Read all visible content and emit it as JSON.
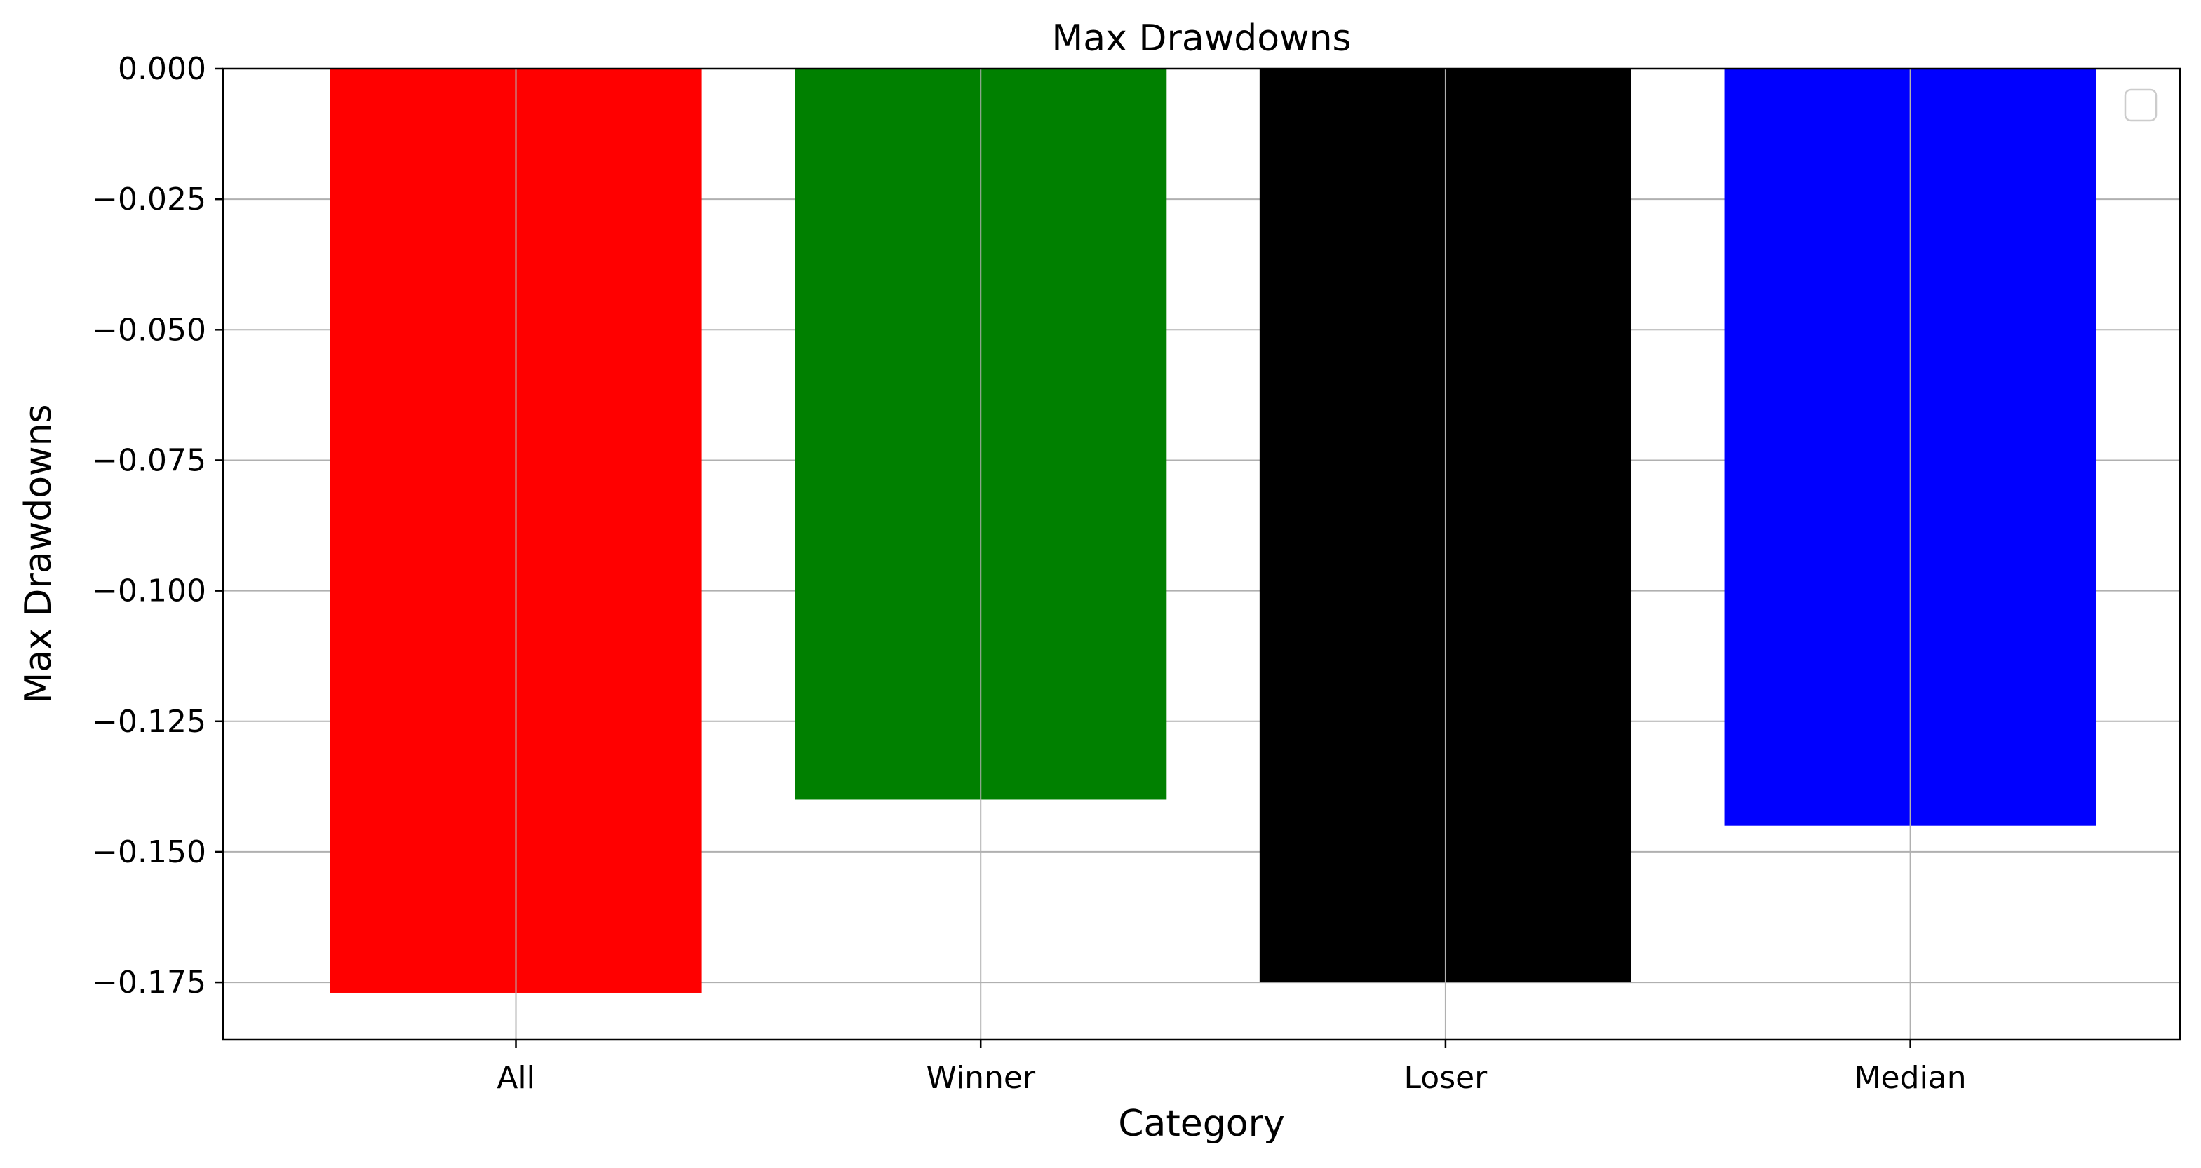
{
  "chart_data": {
    "type": "bar",
    "title": "Max Drawdowns",
    "xlabel": "Category",
    "ylabel": "Max Drawdowns",
    "categories": [
      "All",
      "Winner",
      "Loser",
      "Median"
    ],
    "values": [
      -0.177,
      -0.14,
      -0.175,
      -0.145
    ],
    "colors": [
      "#ff0000",
      "#008000",
      "#000000",
      "#0000ff"
    ],
    "ylim": [
      -0.186,
      0.0
    ],
    "yticks": [
      0.0,
      -0.025,
      -0.05,
      -0.075,
      -0.1,
      -0.125,
      -0.15,
      -0.175
    ],
    "ytick_labels": [
      "0.000",
      "−0.025",
      "−0.050",
      "−0.075",
      "−0.100",
      "−0.125",
      "−0.150",
      "−0.175"
    ],
    "grid": true,
    "legend": {
      "placement": "upper right",
      "entries": []
    }
  }
}
